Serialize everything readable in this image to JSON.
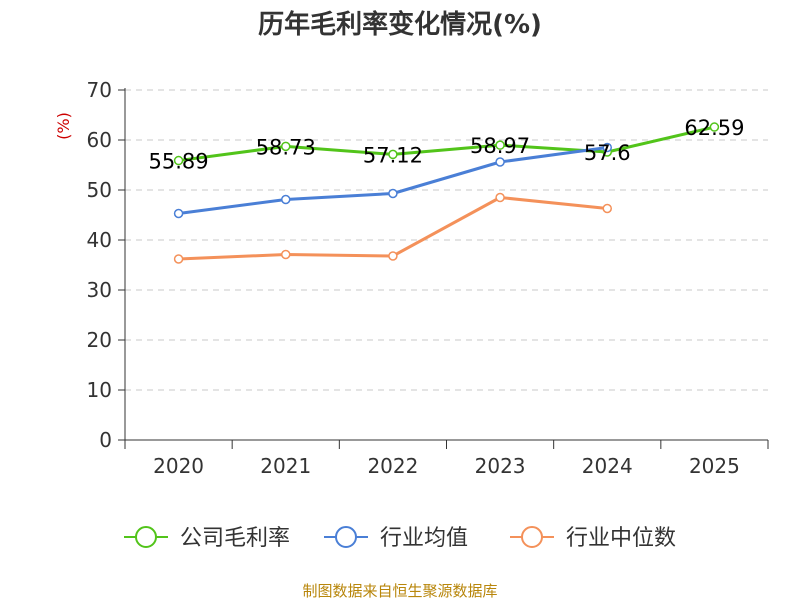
{
  "chart_data": {
    "type": "line",
    "title": "历年毛利率变化情况(%)",
    "ylabel": "(%)",
    "xlabel": "",
    "ylim": [
      0,
      70
    ],
    "yticks": [
      0,
      10,
      20,
      30,
      40,
      50,
      60,
      70
    ],
    "grid": true,
    "legend_position": "bottom",
    "categories": [
      "2020",
      "2021",
      "2022",
      "2023",
      "2024",
      "2025"
    ],
    "series": [
      {
        "name": "公司毛利率",
        "color": "#52c41a",
        "values": [
          55.89,
          58.73,
          57.12,
          58.97,
          57.6,
          62.59
        ],
        "data_labels": [
          "55.89",
          "58.73",
          "57.12",
          "58.97",
          "57.6",
          "62.59"
        ]
      },
      {
        "name": "行业均值",
        "color": "#4a7fd6",
        "values": [
          45.3,
          48.1,
          49.3,
          55.6,
          58.5,
          null
        ]
      },
      {
        "name": "行业中位数",
        "color": "#f4915a",
        "values": [
          36.2,
          37.1,
          36.8,
          48.5,
          46.3,
          null
        ]
      }
    ]
  },
  "source": "制图数据来自恒生聚源数据库"
}
